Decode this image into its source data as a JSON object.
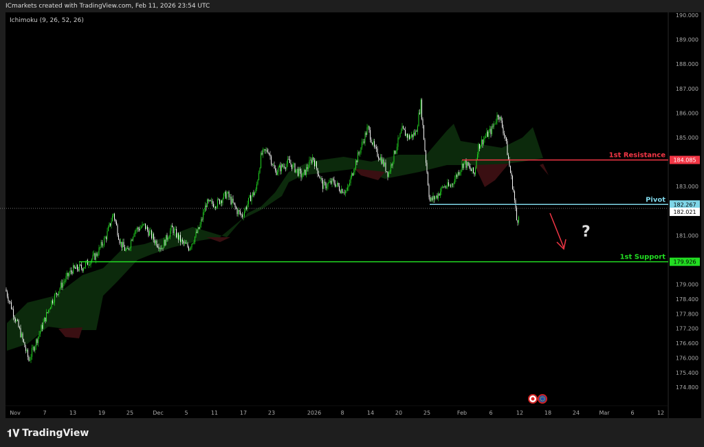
{
  "header": {
    "credit": "ICmarkets created with TradingView.com, Feb 11, 2026 23:54 UTC"
  },
  "indicator": {
    "label": "Ichimoku (9, 26, 52, 26)"
  },
  "footer": {
    "brand": "TradingView"
  },
  "colors": {
    "resistance": "#f23645",
    "pivot": "#7fd6e8",
    "support": "#22dd22",
    "bull": "#22dd22",
    "bear": "#ffffff",
    "arrow": "#f23645"
  },
  "chart_data": {
    "type": "candlestick",
    "y_ticks": [
      "190.000",
      "189.000",
      "188.000",
      "187.000",
      "186.000",
      "185.000",
      "183.000",
      "181.000",
      "179.000",
      "178.400",
      "177.800",
      "177.200",
      "176.600",
      "176.000",
      "175.400",
      "174.800"
    ],
    "x_ticks": [
      "Nov",
      "7",
      "13",
      "19",
      "25",
      "Dec",
      "5",
      "11",
      "17",
      "23",
      "2026",
      "8",
      "14",
      "20",
      "25",
      "Feb",
      "6",
      "12",
      "18",
      "24",
      "Mar",
      "6",
      "12"
    ],
    "price_path": [
      178.8,
      177.8,
      177.0,
      175.9,
      176.5,
      177.2,
      178.3,
      179.0,
      179.6,
      179.7,
      180.2,
      181.0,
      181.9,
      180.7,
      180.3,
      181.2,
      181.4,
      180.8,
      180.5,
      181.3,
      180.7,
      180.5,
      181.3,
      182.3,
      182.3,
      182.7,
      182.0,
      181.8,
      182.6,
      182.8,
      184.3,
      184.5,
      183.6,
      183.8,
      184.0,
      183.4,
      184.2,
      183.0,
      183.2,
      182.9,
      182.8,
      183.8,
      184.6,
      185.4,
      184.5,
      184.1,
      183.5,
      184.5,
      185.3,
      185.0,
      185.2,
      186.4,
      184.5,
      182.4,
      182.6,
      183.0,
      183.0,
      183.5,
      184.0,
      183.5,
      184.6,
      185.0,
      185.3,
      186.0,
      185.0,
      184.0,
      182.8,
      181.5,
      182.0
    ],
    "levels": [
      {
        "name": "1st Resistance",
        "value": 184.085,
        "label": "184.085"
      },
      {
        "name": "Pivot",
        "value": 182.267,
        "label": "182.267"
      },
      {
        "name": "1st Support",
        "value": 179.926,
        "label": "179.926"
      }
    ],
    "last_price": {
      "value": 182.021,
      "label": "182.021"
    },
    "annotation": "?"
  }
}
